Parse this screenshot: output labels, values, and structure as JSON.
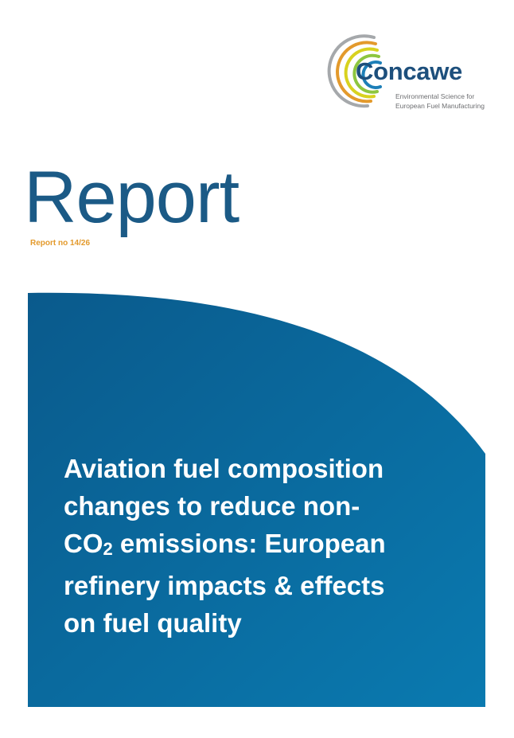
{
  "logo": {
    "name": "Concawe",
    "tagline": [
      "Environmental Science for",
      "European Fuel Manufacturing"
    ]
  },
  "heading": "Report",
  "report_number": "Report no 14/26",
  "title": [
    "Aviation fuel composition",
    "changes to reduce non-",
    [
      "CO",
      "2",
      " emissions: European"
    ],
    "refinery impacts & effects",
    "on fuel quality"
  ]
}
